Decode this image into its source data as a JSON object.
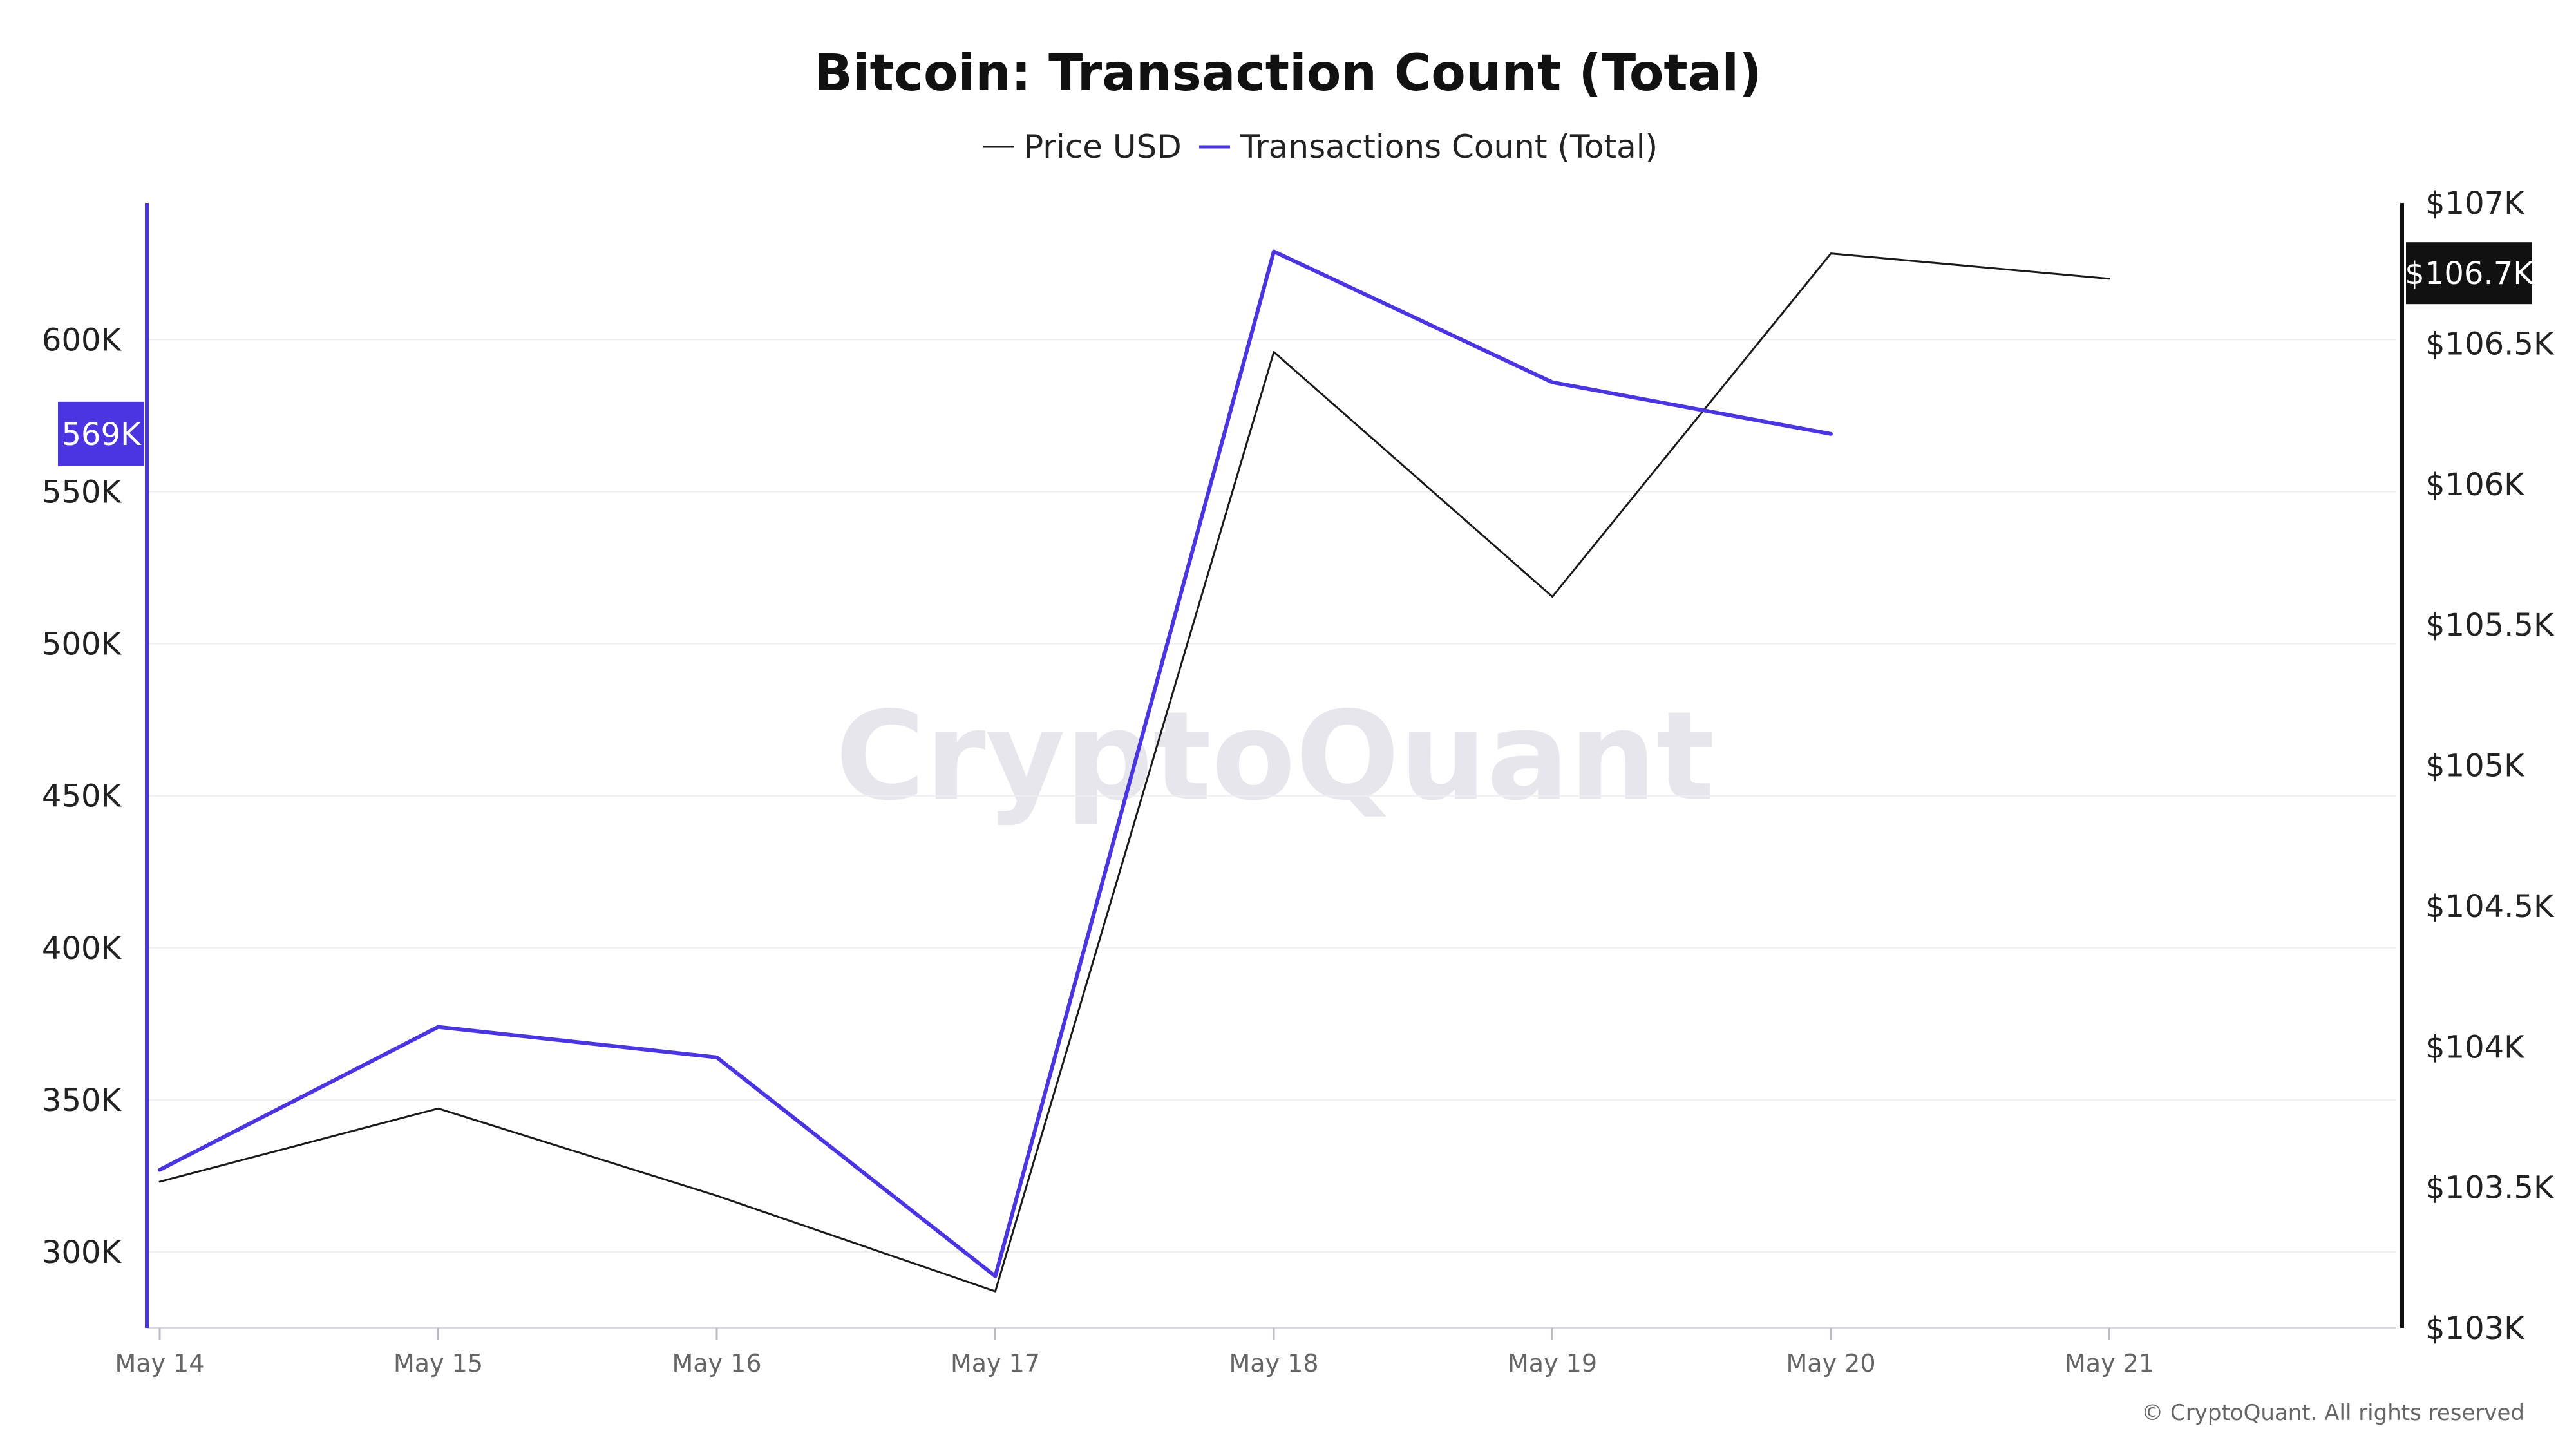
{
  "chart_data": {
    "type": "line",
    "title": "Bitcoin: Transaction Count (Total)",
    "watermark": "CryptoQuant",
    "credit": "© CryptoQuant. All rights reserved",
    "categories": [
      "May 14",
      "May 15",
      "May 16",
      "May 17",
      "May 18",
      "May 19",
      "May 20",
      "May 21"
    ],
    "series": [
      {
        "name": "Price USD",
        "color": "#1a1a1a",
        "axis": "right",
        "values": [
          103520,
          103780,
          103470,
          103130,
          106470,
          105600,
          106820,
          106730
        ]
      },
      {
        "name": "Transactions Count (Total)",
        "color": "#4a35e0",
        "axis": "left",
        "values": [
          327000,
          374000,
          364000,
          292000,
          629000,
          586000,
          569000,
          null
        ]
      }
    ],
    "y_left": {
      "ticks": [
        "300K",
        "350K",
        "400K",
        "450K",
        "500K",
        "550K",
        "600K"
      ],
      "tick_values": [
        300000,
        350000,
        400000,
        450000,
        500000,
        550000,
        600000
      ],
      "range": [
        275000,
        645000
      ],
      "color": "#4a35e0",
      "last_value_label": "569K",
      "last_value": 569000
    },
    "y_right": {
      "ticks": [
        "$103K",
        "$103.5K",
        "$104K",
        "$104.5K",
        "$105K",
        "$105.5K",
        "$106K",
        "$106.5K",
        "$107K"
      ],
      "tick_values": [
        103000,
        103500,
        104000,
        104500,
        105000,
        105500,
        106000,
        106500,
        107000
      ],
      "range": [
        103000,
        107000
      ],
      "color": "#111111",
      "last_value_label": "$106.7K",
      "last_value": 106750
    },
    "grid": true,
    "legend_position": "top-center"
  }
}
